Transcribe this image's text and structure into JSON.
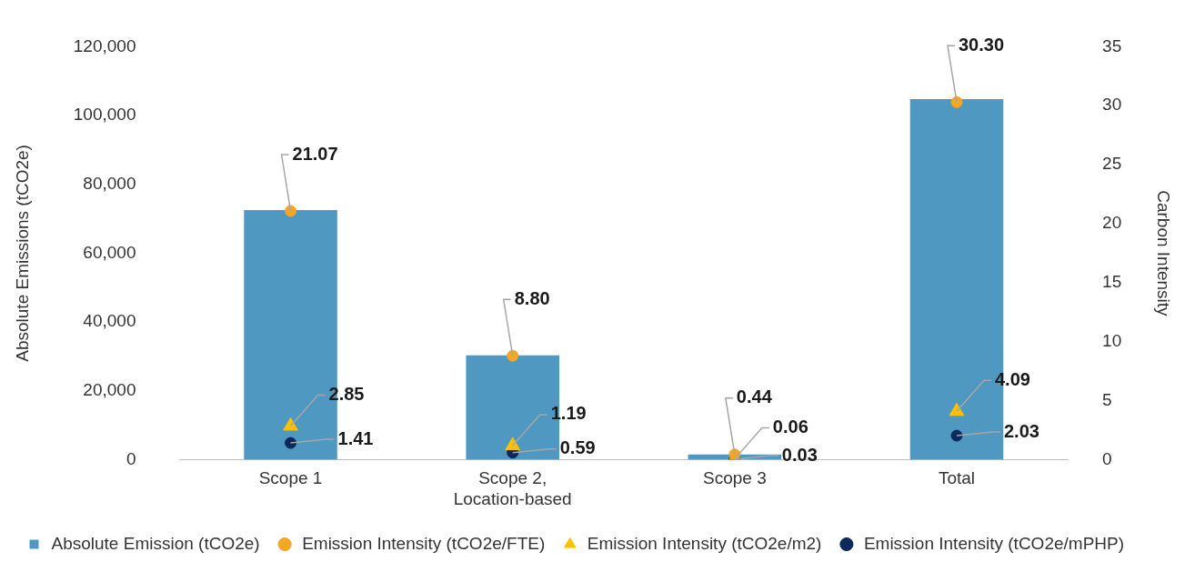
{
  "chart_data": {
    "type": "bar",
    "categories": [
      "Scope 1",
      "Scope 2, Location-based",
      "Scope 3",
      "Total"
    ],
    "ylabel": "Absolute Emissions (tCO2e)",
    "y2label": "Carbon Intensity",
    "ylim": [
      0,
      120000
    ],
    "yticks": [
      0,
      {
        "value": 20000,
        "label": "20,000"
      },
      {
        "value": 40000,
        "label": "40,000"
      },
      {
        "value": 60000,
        "label": "60,000"
      },
      {
        "value": 80000,
        "label": "80,000"
      },
      {
        "value": 100000,
        "label": "100,000"
      },
      {
        "value": 120000,
        "label": "120,000"
      }
    ],
    "y2lim": [
      0,
      35
    ],
    "y2ticks": [
      0,
      5,
      10,
      15,
      20,
      25,
      30,
      35
    ],
    "grid": false,
    "legend": "bottom",
    "series": [
      {
        "name": "Absolute Emission (tCO2e)",
        "color": "#4e98c2",
        "values": [
          72500,
          30300,
          1500,
          104800
        ]
      },
      {
        "name": "Emission Intensity (tCO2e/FTE)",
        "type": "scatter",
        "axis": "y2",
        "marker": "circle",
        "color": "#f5a623",
        "values": [
          21.07,
          8.8,
          0.44,
          30.3
        ],
        "value_labels": [
          "21.07",
          "8.80",
          "0.44",
          "30.30"
        ]
      },
      {
        "name": "Emission Intensity (tCO2e/m2)",
        "type": "scatter",
        "axis": "y2",
        "marker": "triangle",
        "color": "#ffc000",
        "values": [
          2.85,
          1.19,
          0.06,
          4.09
        ],
        "value_labels": [
          "2.85",
          "1.19",
          "0.06",
          "4.09"
        ]
      },
      {
        "name": "Emission Intensity (tCO2e/mPHP)",
        "type": "scatter",
        "axis": "y2",
        "marker": "circle",
        "color": "#0b2a5b",
        "values": [
          1.41,
          0.59,
          0.03,
          2.03
        ],
        "value_labels": [
          "1.41",
          "0.59",
          "0.03",
          "2.03"
        ]
      }
    ]
  }
}
